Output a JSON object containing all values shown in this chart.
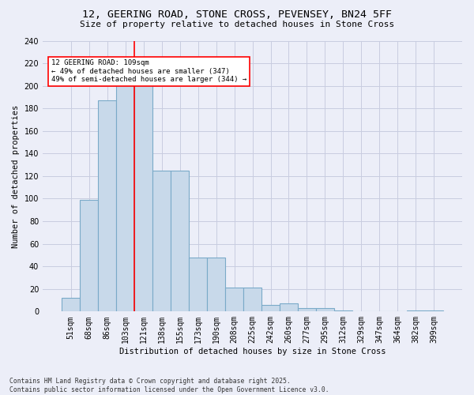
{
  "title_line1": "12, GEERING ROAD, STONE CROSS, PEVENSEY, BN24 5FF",
  "title_line2": "Size of property relative to detached houses in Stone Cross",
  "xlabel": "Distribution of detached houses by size in Stone Cross",
  "ylabel": "Number of detached properties",
  "categories": [
    "51sqm",
    "68sqm",
    "86sqm",
    "103sqm",
    "121sqm",
    "138sqm",
    "155sqm",
    "173sqm",
    "190sqm",
    "208sqm",
    "225sqm",
    "242sqm",
    "260sqm",
    "277sqm",
    "295sqm",
    "312sqm",
    "329sqm",
    "347sqm",
    "364sqm",
    "382sqm",
    "399sqm"
  ],
  "values": [
    12,
    99,
    187,
    201,
    201,
    125,
    125,
    48,
    48,
    21,
    21,
    6,
    7,
    3,
    3,
    1,
    0,
    0,
    0,
    1,
    1
  ],
  "bar_color": "#c8d9ea",
  "bar_edge_color": "#7aaac8",
  "grid_color": "#c8cce0",
  "background_color": "#eceef8",
  "vline_color": "red",
  "vline_x": 3.5,
  "annotation_text": "12 GEERING ROAD: 109sqm\n← 49% of detached houses are smaller (347)\n49% of semi-detached houses are larger (344) →",
  "annotation_box_color": "white",
  "annotation_box_edge": "red",
  "footnote1": "Contains HM Land Registry data © Crown copyright and database right 2025.",
  "footnote2": "Contains public sector information licensed under the Open Government Licence v3.0.",
  "ylim": [
    0,
    240
  ],
  "yticks": [
    0,
    20,
    40,
    60,
    80,
    100,
    120,
    140,
    160,
    180,
    200,
    220,
    240
  ]
}
